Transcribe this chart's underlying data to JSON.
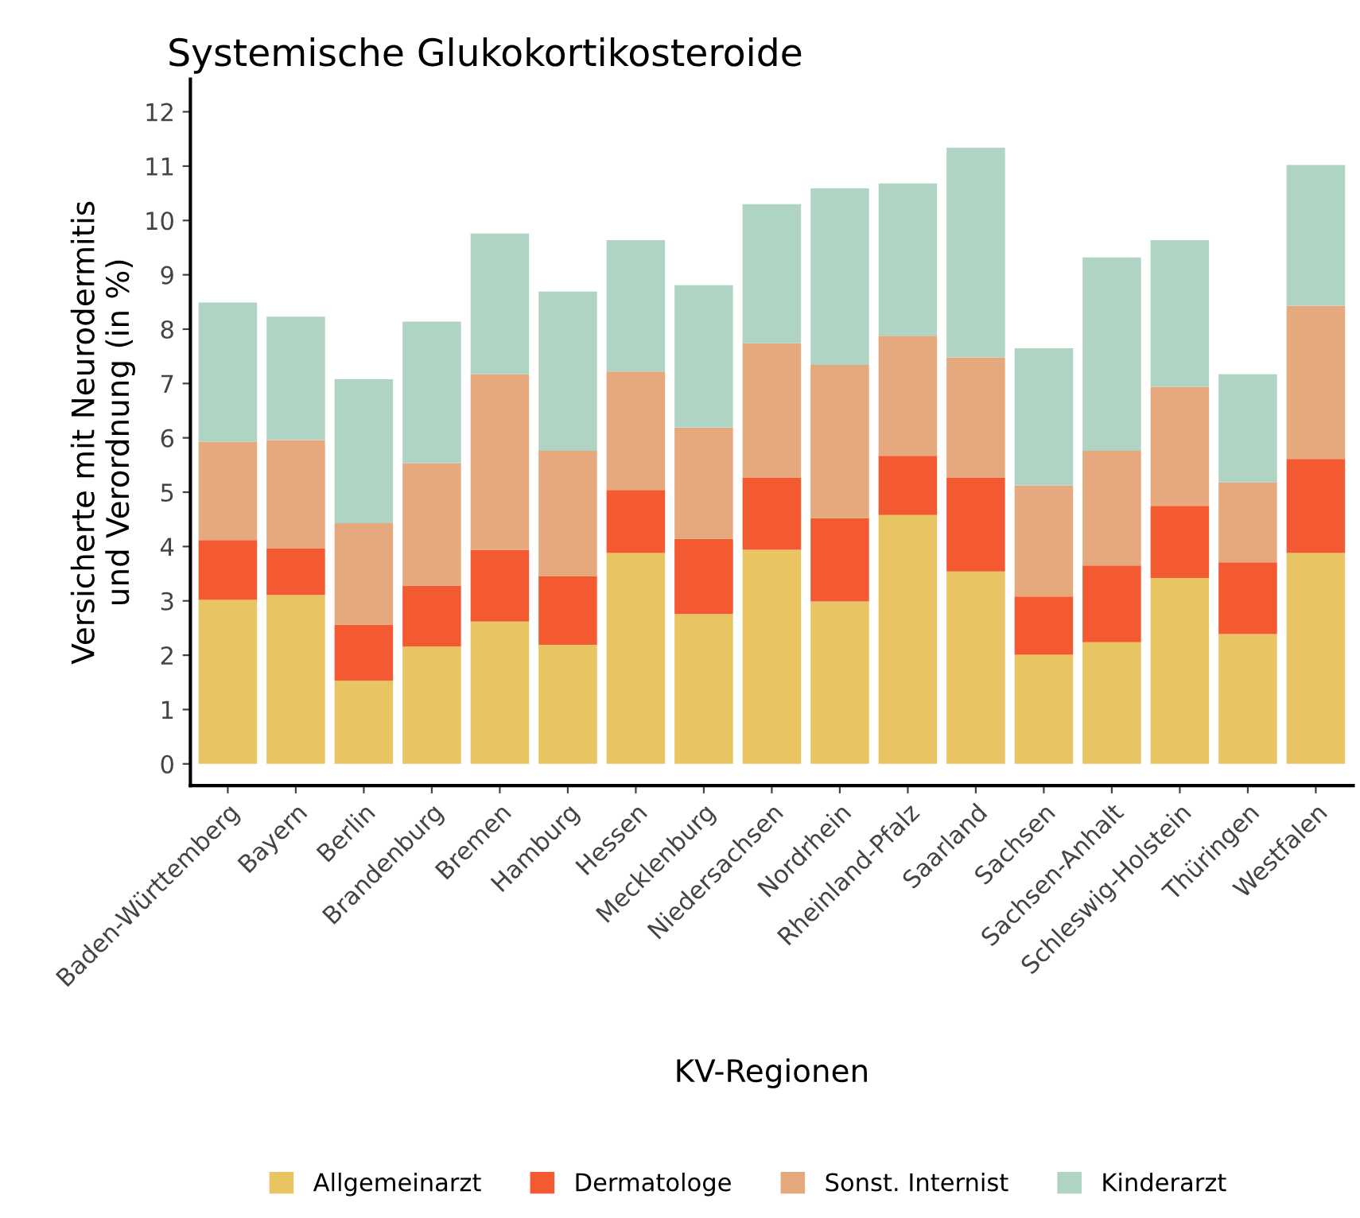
{
  "chart_data": {
    "type": "bar",
    "stacked": true,
    "title": "Systemische Glukokortikosteroide",
    "xlabel": "KV-Regionen",
    "ylabel": "Versicherte mit Neurodermitis\nund Verordnung (in %)",
    "categories": [
      "Baden-Württemberg",
      "Bayern",
      "Berlin",
      "Brandenburg",
      "Bremen",
      "Hamburg",
      "Hessen",
      "Mecklenburg",
      "Niedersachsen",
      "Nordrhein",
      "Rheinland-Pfalz",
      "Saarland",
      "Sachsen",
      "Sachsen-Anhalt",
      "Schleswig-Holstein",
      "Thüringen",
      "Westfalen"
    ],
    "series": [
      {
        "name": "Allgemeinarzt",
        "color": "#e8c462",
        "values": [
          3.02,
          3.11,
          1.53,
          2.16,
          2.62,
          2.19,
          3.88,
          2.76,
          3.94,
          2.99,
          4.58,
          3.54,
          2.01,
          2.24,
          3.42,
          2.39,
          3.88
        ]
      },
      {
        "name": "Dermatologe",
        "color": "#f45a32",
        "values": [
          1.1,
          0.86,
          1.03,
          1.12,
          1.32,
          1.26,
          1.16,
          1.38,
          1.33,
          1.53,
          1.09,
          1.73,
          1.07,
          1.41,
          1.33,
          1.32,
          1.73
        ]
      },
      {
        "name": "Sonst. Internist",
        "color": "#e6a97e",
        "values": [
          1.81,
          1.99,
          1.87,
          2.25,
          3.23,
          2.31,
          2.18,
          2.05,
          2.47,
          2.82,
          2.21,
          2.21,
          2.04,
          2.11,
          2.19,
          1.47,
          2.82
        ]
      },
      {
        "name": "Kinderarzt",
        "color": "#b0d4c4",
        "values": [
          2.56,
          2.27,
          2.65,
          2.61,
          2.59,
          2.93,
          2.42,
          2.62,
          2.56,
          3.25,
          2.8,
          3.86,
          2.53,
          3.56,
          2.7,
          1.99,
          2.59
        ]
      }
    ],
    "ylim": [
      -0.4,
      12.6
    ],
    "yticks": [
      0,
      1,
      2,
      3,
      4,
      5,
      6,
      7,
      8,
      9,
      10,
      11,
      12
    ],
    "grid": false,
    "legend": "bottom"
  }
}
